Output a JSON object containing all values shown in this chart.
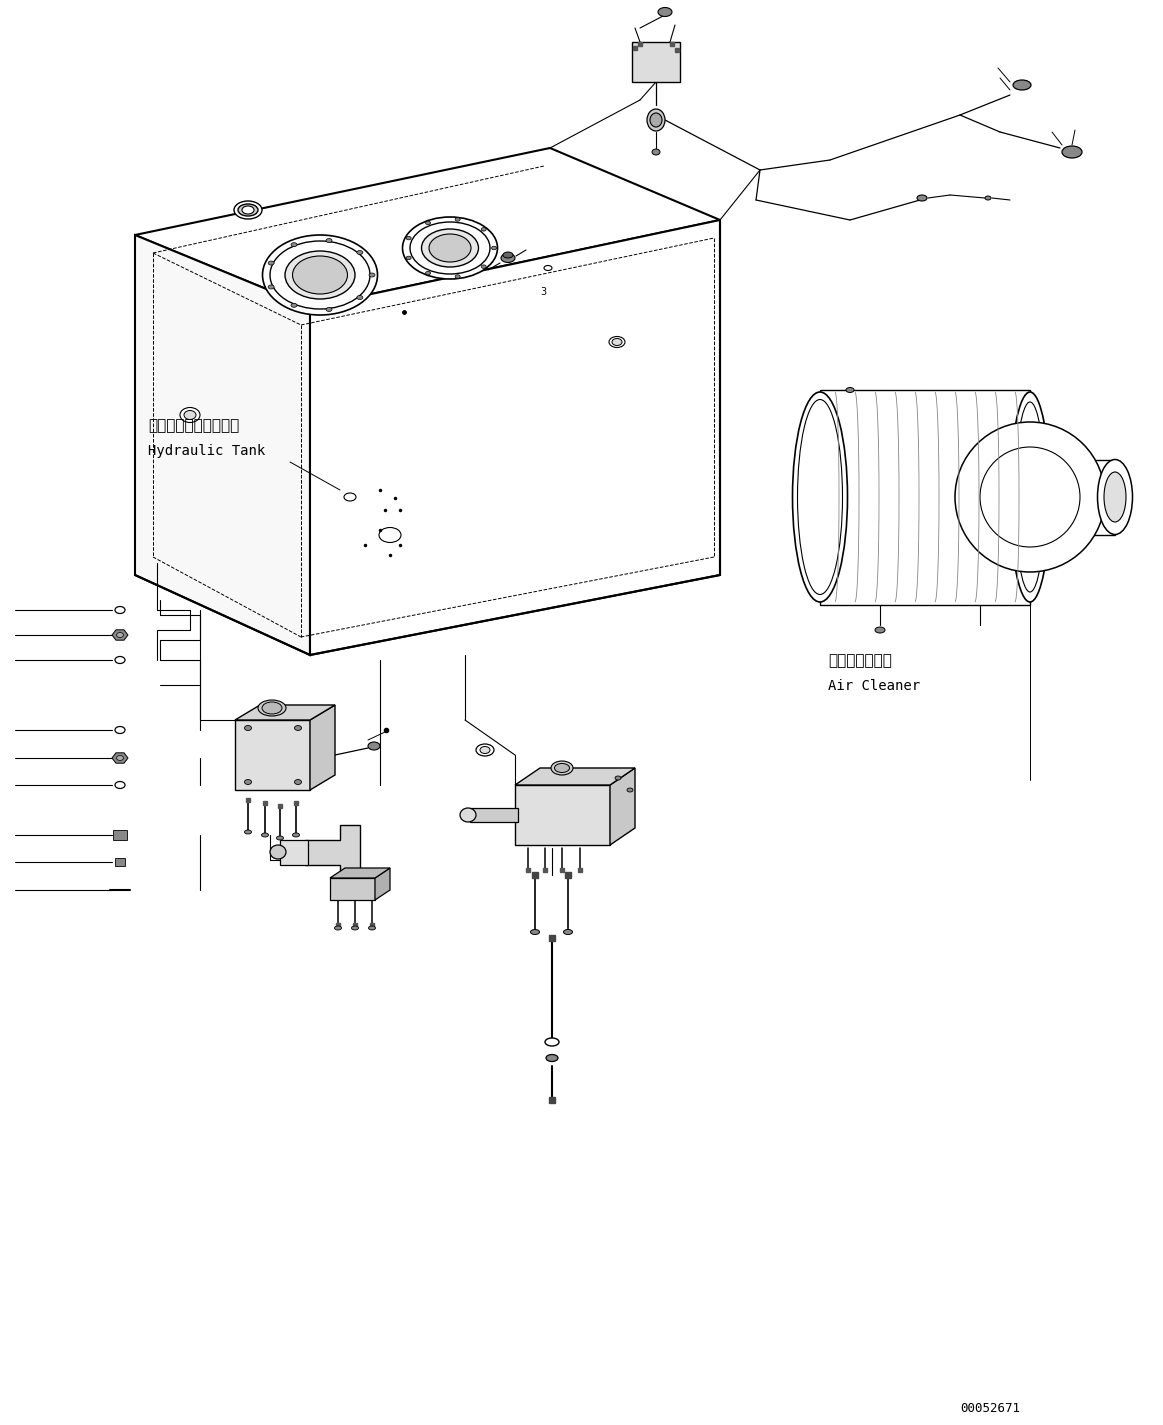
{
  "background_color": "#ffffff",
  "line_color": "#000000",
  "hydraulic_tank_label_jp": "ハイドロリックタンク",
  "hydraulic_tank_label_en": "Hydraulic Tank",
  "air_cleaner_label_jp": "エアークリーナ",
  "air_cleaner_label_en": "Air Cleaner",
  "part_number": "00052671",
  "figsize": [
    11.63,
    14.25
  ],
  "dpi": 100
}
